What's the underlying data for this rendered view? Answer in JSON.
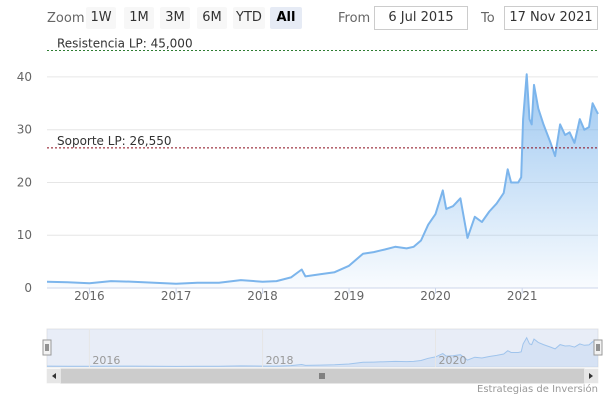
{
  "toolbar": {
    "zoom_label": "Zoom",
    "buttons": [
      "1W",
      "1M",
      "3M",
      "6M",
      "YTD",
      "All"
    ],
    "active_button": "All",
    "from_label": "From",
    "from_value": "6 Jul 2015",
    "to_label": "To",
    "to_value": "17 Nov 2021"
  },
  "credits": "Estrategias de Inversión",
  "colors": {
    "line": "#7cb5ec",
    "navigator_mask": "#cbd6ee",
    "resistance_line": "#2e7d32",
    "support_line": "#8b0a1a"
  },
  "chart_data": {
    "type": "area",
    "x_axis": {
      "type": "datetime",
      "min": "2015-07-06",
      "max": "2021-11-17",
      "ticks": [
        "2016",
        "2017",
        "2018",
        "2019",
        "2020",
        "2021"
      ]
    },
    "y_axis": {
      "min": 0,
      "max": 47,
      "ticks": [
        "0",
        "10",
        "20",
        "30",
        "40"
      ],
      "grid": true
    },
    "plot_lines": [
      {
        "label": "Resistencia LP: 45,000",
        "value": 45,
        "style": "dashed"
      },
      {
        "label": "Soporte LP: 26,550",
        "value": 26.55,
        "style": "dashed"
      }
    ],
    "series": [
      {
        "points": [
          [
            "2015-07-06",
            1.2
          ],
          [
            "2015-10-01",
            1.1
          ],
          [
            "2016-01-01",
            0.9
          ],
          [
            "2016-04-01",
            1.3
          ],
          [
            "2016-07-01",
            1.2
          ],
          [
            "2016-10-01",
            1.0
          ],
          [
            "2017-01-01",
            0.8
          ],
          [
            "2017-04-01",
            1.0
          ],
          [
            "2017-07-01",
            1.0
          ],
          [
            "2017-10-01",
            1.5
          ],
          [
            "2018-01-01",
            1.2
          ],
          [
            "2018-03-01",
            1.3
          ],
          [
            "2018-05-01",
            2.0
          ],
          [
            "2018-06-15",
            3.5
          ],
          [
            "2018-07-01",
            2.2
          ],
          [
            "2018-09-01",
            2.6
          ],
          [
            "2018-11-01",
            3.0
          ],
          [
            "2019-01-01",
            4.2
          ],
          [
            "2019-03-01",
            6.5
          ],
          [
            "2019-04-15",
            6.8
          ],
          [
            "2019-06-01",
            7.3
          ],
          [
            "2019-07-15",
            7.8
          ],
          [
            "2019-09-01",
            7.5
          ],
          [
            "2019-10-01",
            7.8
          ],
          [
            "2019-11-01",
            9.0
          ],
          [
            "2019-12-01",
            12.0
          ],
          [
            "2020-01-01",
            14.0
          ],
          [
            "2020-02-01",
            18.5
          ],
          [
            "2020-02-15",
            15.0
          ],
          [
            "2020-03-15",
            15.5
          ],
          [
            "2020-04-15",
            17.0
          ],
          [
            "2020-05-15",
            9.5
          ],
          [
            "2020-06-15",
            13.5
          ],
          [
            "2020-07-15",
            12.5
          ],
          [
            "2020-08-15",
            14.5
          ],
          [
            "2020-09-15",
            16.0
          ],
          [
            "2020-10-15",
            18.0
          ],
          [
            "2020-11-01",
            22.5
          ],
          [
            "2020-11-15",
            20.0
          ],
          [
            "2020-12-15",
            20.0
          ],
          [
            "2020-12-28",
            21.0
          ],
          [
            "2021-01-05",
            32.0
          ],
          [
            "2021-01-20",
            40.5
          ],
          [
            "2021-02-01",
            32.0
          ],
          [
            "2021-02-10",
            31.0
          ],
          [
            "2021-02-20",
            38.5
          ],
          [
            "2021-03-10",
            34.0
          ],
          [
            "2021-04-01",
            31.0
          ],
          [
            "2021-05-01",
            27.5
          ],
          [
            "2021-05-20",
            25.0
          ],
          [
            "2021-06-10",
            31.0
          ],
          [
            "2021-07-01",
            29.0
          ],
          [
            "2021-07-20",
            29.5
          ],
          [
            "2021-08-10",
            27.5
          ],
          [
            "2021-09-01",
            32.0
          ],
          [
            "2021-09-20",
            30.0
          ],
          [
            "2021-10-10",
            30.5
          ],
          [
            "2021-10-25",
            35.0
          ],
          [
            "2021-11-17",
            33.0
          ]
        ]
      }
    ],
    "navigator": {
      "ticks": [
        "2016",
        "2018",
        "2020"
      ],
      "selection_min": "2015-07-06",
      "selection_max": "2021-11-17"
    }
  }
}
